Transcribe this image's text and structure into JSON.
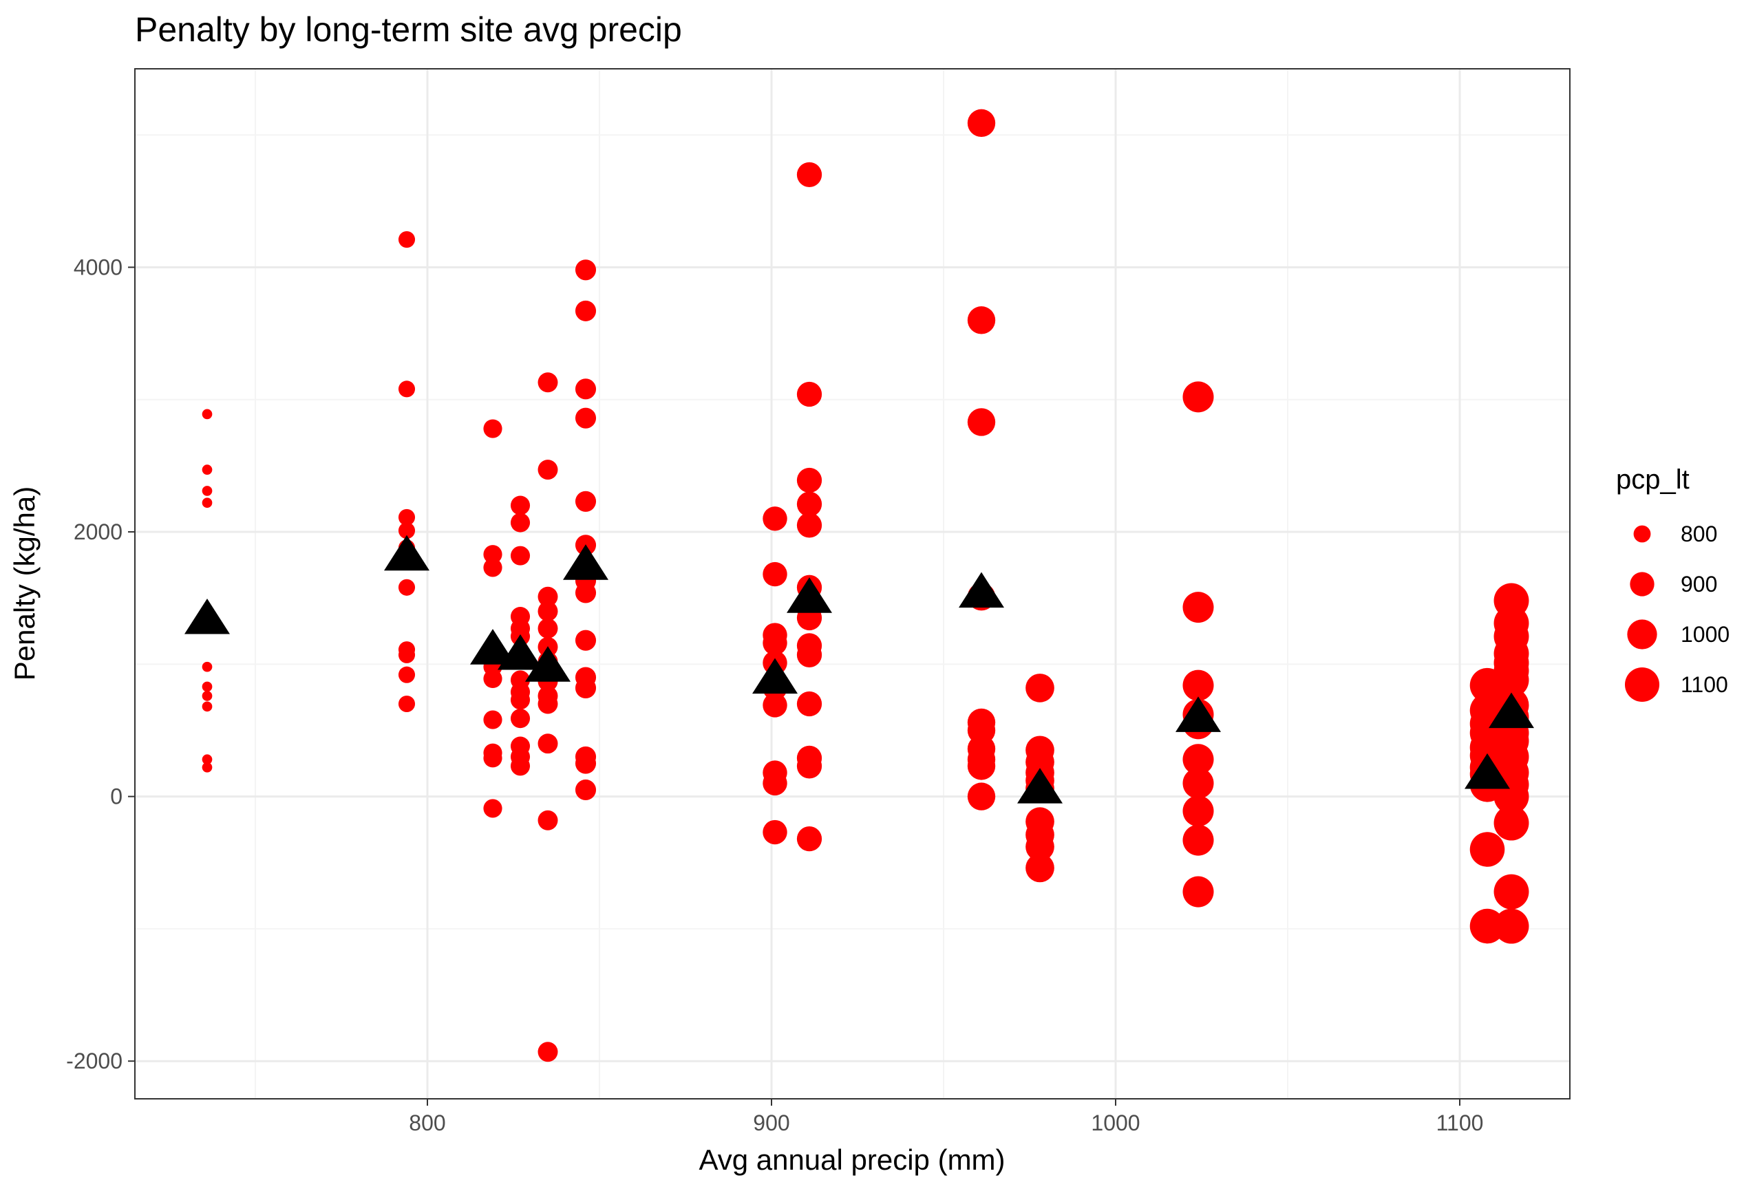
{
  "chart_data": {
    "type": "scatter",
    "title": "Penalty by long-term site avg precip",
    "xlabel": "Avg annual precip (mm)",
    "ylabel": "Penalty (kg/ha)",
    "xlim": [
      715,
      1132
    ],
    "ylim": [
      -2285,
      5500
    ],
    "x_ticks": [
      800,
      900,
      1000,
      1100
    ],
    "x_tick_labels": [
      "800",
      "900",
      "1000",
      "1100"
    ],
    "x_minor": [
      750,
      850,
      950,
      1050
    ],
    "y_ticks": [
      -2000,
      0,
      2000,
      4000
    ],
    "y_tick_labels": [
      "-2000",
      "0",
      "2000",
      "4000"
    ],
    "y_minor": [
      -1000,
      1000,
      3000,
      5000
    ],
    "grid": true,
    "colors": {
      "points": "#ff0000",
      "means": "#000000",
      "panel_border": "#333333",
      "grid_major": "#ebebeb",
      "grid_minor": "#f4f4f4"
    },
    "legend": {
      "title": "pcp_lt",
      "placement": "right",
      "entries": [
        {
          "label": "800",
          "value": 800
        },
        {
          "label": "900",
          "value": 900
        },
        {
          "label": "1000",
          "value": 1000
        },
        {
          "label": "1100",
          "value": 1100
        }
      ]
    },
    "size_scale": {
      "domain": [
        736,
        1114
      ]
    },
    "sites": [
      {
        "x": 736,
        "values": [
          2890,
          2470,
          2310,
          2220,
          980,
          830,
          760,
          680,
          280,
          220
        ],
        "mean": 1340
      },
      {
        "x": 794,
        "values": [
          4210,
          3080,
          2110,
          2010,
          1880,
          1580,
          1110,
          1070,
          920,
          700
        ],
        "mean": 1820
      },
      {
        "x": 819,
        "values": [
          2780,
          1830,
          1730,
          1090,
          980,
          890,
          580,
          330,
          290,
          -90
        ],
        "mean": 1110
      },
      {
        "x": 827,
        "values": [
          2200,
          2070,
          1820,
          1360,
          1270,
          1210,
          1060,
          880,
          790,
          730,
          590,
          380,
          300,
          230
        ],
        "mean": 1070
      },
      {
        "x": 835,
        "values": [
          3130,
          2470,
          1510,
          1400,
          1270,
          1130,
          1020,
          870,
          760,
          700,
          400,
          -180,
          -1930
        ],
        "mean": 980
      },
      {
        "x": 846,
        "values": [
          3980,
          3670,
          3080,
          2860,
          2230,
          1900,
          1630,
          1540,
          1180,
          900,
          820,
          300,
          250,
          50
        ],
        "mean": 1750
      },
      {
        "x": 901,
        "values": [
          2100,
          1680,
          1220,
          1160,
          1010,
          820,
          690,
          180,
          100,
          -270
        ],
        "mean": 890
      },
      {
        "x": 911,
        "values": [
          4700,
          3040,
          2390,
          2210,
          2050,
          1580,
          1420,
          1350,
          1140,
          1070,
          700,
          290,
          230,
          -320
        ],
        "mean": 1500
      },
      {
        "x": 961,
        "values": [
          5090,
          3600,
          2830,
          1510,
          560,
          500,
          360,
          280,
          230,
          0
        ],
        "mean": 1540
      },
      {
        "x": 978,
        "values": [
          820,
          350,
          260,
          180,
          120,
          60,
          -190,
          -290,
          -380,
          -540
        ],
        "mean": 60
      },
      {
        "x": 1024,
        "values": [
          3020,
          1430,
          840,
          620,
          550,
          280,
          100,
          -110,
          -330,
          -720
        ],
        "mean": 600
      },
      {
        "x": 1108,
        "values": [
          840,
          650,
          550,
          480,
          370,
          310,
          220,
          170,
          90,
          -400,
          -980
        ],
        "mean": 170
      },
      {
        "x": 1115,
        "values": [
          1480,
          1310,
          1210,
          1080,
          1010,
          950,
          880,
          690,
          600,
          480,
          420,
          300,
          180,
          90,
          0,
          -200,
          -720,
          -980
        ],
        "mean": 630
      }
    ]
  }
}
